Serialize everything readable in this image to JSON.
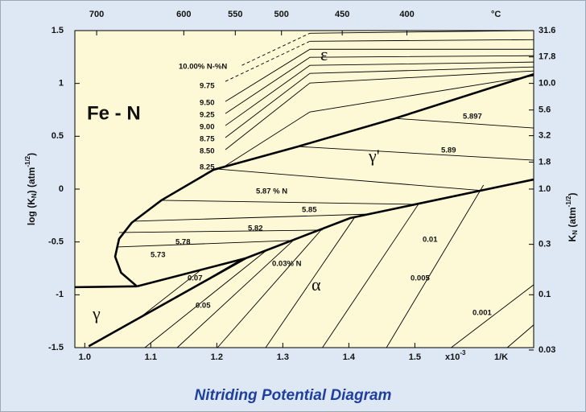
{
  "chart_data": {
    "type": "line",
    "title": "Nitriding Potential Diagram",
    "diagram_label": "Fe - N",
    "ylabel_parts": [
      "log (K",
      "N",
      ") (atm",
      "-1/2",
      ")"
    ],
    "y2label_parts": [
      "K",
      "N",
      " (atm",
      "-1/2",
      ")"
    ],
    "top_unit": "°C",
    "x_unit": "1/K",
    "x_scale_parts": [
      "x10",
      "-3"
    ],
    "xlim": [
      0.985,
      1.68
    ],
    "ylim": [
      -1.5,
      1.5
    ],
    "xticks": [
      {
        "value": 1.0,
        "label": "1.0"
      },
      1.1,
      1.2,
      1.3,
      1.4,
      1.5
    ],
    "yticks": [
      1.5,
      1,
      0.5,
      0,
      -0.5,
      -1,
      -1.5
    ],
    "top_ticks": [
      {
        "value": 1.018,
        "label": "700"
      },
      {
        "value": 1.15,
        "label": "600"
      },
      {
        "value": 1.228,
        "label": "550"
      },
      {
        "value": 1.298,
        "label": "500"
      },
      {
        "value": 1.39,
        "label": "450"
      },
      {
        "value": 1.488,
        "label": "400"
      }
    ],
    "y2log": true,
    "y2lim": [
      0.0316,
      31.6
    ],
    "y2ticks": [
      31.6,
      17.8,
      {
        "value": 10,
        "label": "10.0"
      },
      5.6,
      3.2,
      1.8,
      {
        "value": 1,
        "label": "1.0"
      },
      0.3,
      0.1,
      0.03
    ],
    "phase_labels": [
      "ε",
      "γ'",
      "α",
      "γ"
    ],
    "labels": [
      "10.00% N-%N",
      "9.75",
      "9.50",
      "9.25",
      "9.00",
      "8.75",
      "8.50",
      "8.25",
      "5.897",
      "5.89",
      "5.87 % N",
      "5.85",
      "5.82",
      "5.78",
      "5.73",
      "0.07",
      "0.05",
      "0.03% N",
      "0.01",
      "0.005",
      "0.001"
    ],
    "color": "#000000",
    "series": [
      {
        "style": "thick",
        "x": [
          0.985,
          1.079
        ],
        "y": [
          -0.928,
          -0.92
        ]
      },
      {
        "style": "thick",
        "x": [
          1.079,
          1.244,
          1.402,
          1.68
        ],
        "y": [
          -0.92,
          -0.654,
          -0.274,
          0.091
        ]
      },
      {
        "style": "thick",
        "x": [
          1.079,
          1.055,
          1.046,
          1.052,
          1.071,
          1.116,
          1.195,
          1.323,
          1.47,
          1.68
        ],
        "y": [
          -0.92,
          -0.791,
          -0.639,
          -0.471,
          -0.319,
          -0.106,
          0.183,
          0.403,
          0.669,
          1.087
        ]
      },
      {
        "style": "thick",
        "x": [
          1.006,
          1.244
        ],
        "y": [
          -1.487,
          -0.654
        ]
      },
      {
        "style": "thin",
        "dashed": true,
        "x": [
          1.238,
          1.341
        ],
        "y": [
          1.171,
          1.475
        ]
      },
      {
        "style": "thin",
        "x": [
          1.341,
          1.68
        ],
        "y": [
          1.475,
          1.5
        ]
      },
      {
        "style": "thin",
        "dashed": true,
        "x": [
          1.213,
          1.341
        ],
        "y": [
          1.019,
          1.399
        ]
      },
      {
        "style": "thin",
        "x": [
          1.341,
          1.68
        ],
        "y": [
          1.399,
          1.414
        ]
      },
      {
        "style": "thin",
        "x": [
          1.213,
          1.341,
          1.68
        ],
        "y": [
          0.829,
          1.323,
          1.323
        ]
      },
      {
        "style": "thin",
        "x": [
          1.213,
          1.341,
          1.68
        ],
        "y": [
          0.715,
          1.247,
          1.262
        ]
      },
      {
        "style": "thin",
        "x": [
          1.213,
          1.341,
          1.68
        ],
        "y": [
          0.601,
          1.171,
          1.202
        ]
      },
      {
        "style": "thin",
        "x": [
          1.213,
          1.341,
          1.68
        ],
        "y": [
          0.487,
          1.095,
          1.156
        ]
      },
      {
        "style": "thin",
        "x": [
          1.213,
          1.341,
          1.68
        ],
        "y": [
          0.373,
          1.004,
          1.118
        ]
      },
      {
        "style": "thin",
        "x": [
          1.213,
          1.341,
          1.68
        ],
        "y": [
          0.221,
          0.73,
          1.072
        ]
      },
      {
        "style": "thin",
        "x": [
          1.049,
          1.311
        ],
        "y": [
          -0.548,
          -0.487
        ]
      },
      {
        "style": "thin",
        "x": [
          1.052,
          1.36
        ],
        "y": [
          -0.411,
          -0.388
        ]
      },
      {
        "style": "thin",
        "x": [
          1.073,
          1.433
        ],
        "y": [
          -0.304,
          -0.236
        ]
      },
      {
        "style": "thin",
        "x": [
          1.116,
          1.5
        ],
        "y": [
          -0.106,
          -0.144
        ]
      },
      {
        "style": "thin",
        "x": [
          1.201,
          1.604
        ],
        "y": [
          0.19,
          -0.015
        ]
      },
      {
        "style": "thin",
        "x": [
          1.323,
          1.68
        ],
        "y": [
          0.403,
          0.274
        ]
      },
      {
        "style": "thin",
        "x": [
          1.47,
          1.68
        ],
        "y": [
          0.669,
          0.578
        ]
      },
      {
        "style": "thin",
        "x": [
          1.085,
          1.177
        ],
        "y": [
          -1.209,
          -0.76
        ]
      },
      {
        "style": "thin",
        "x": [
          1.116,
          1.238
        ],
        "y": [
          -1.103,
          -0.662
        ]
      },
      {
        "style": "thin",
        "x": [
          1.091,
          1.274
        ],
        "y": [
          -1.5,
          -0.586
        ]
      },
      {
        "style": "thin",
        "x": [
          1.14,
          1.317
        ],
        "y": [
          -1.5,
          -0.479
        ]
      },
      {
        "style": "thin",
        "x": [
          1.201,
          1.36
        ],
        "y": [
          -1.5,
          -0.373
        ]
      },
      {
        "style": "thin",
        "x": [
          1.274,
          1.409
        ],
        "y": [
          -1.5,
          -0.266
        ]
      },
      {
        "style": "thin",
        "x": [
          1.36,
          1.506
        ],
        "y": [
          -1.5,
          -0.137
        ]
      },
      {
        "style": "thin",
        "x": [
          1.457,
          1.604
        ],
        "y": [
          -1.5,
          0.038
        ]
      },
      {
        "style": "thin",
        "x": [
          1.555,
          1.68
        ],
        "y": [
          -1.5,
          -0.905
        ]
      },
      {
        "style": "thin",
        "x": [
          1.64,
          1.68
        ],
        "y": [
          -1.5,
          -1.285
        ]
      }
    ]
  }
}
